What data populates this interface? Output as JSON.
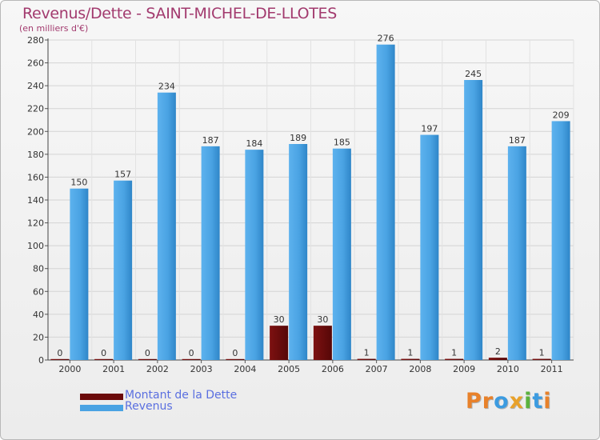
{
  "header": {
    "title": "Revenus/Dette - SAINT-MICHEL-DE-LLOTES",
    "subtitle": "(en milliers d'€)"
  },
  "legend": {
    "items": [
      {
        "label": "Montant de la Dette",
        "color": "#6b0a0a"
      },
      {
        "label": "Revenus",
        "color": "#4aa3e3"
      }
    ]
  },
  "logo": {
    "text": "Proxiti"
  },
  "colors": {
    "title": "#a23a6e",
    "dette": "#6b0a0a",
    "revenus": "#4aa3e3",
    "legend_text": "#5a6fe0"
  },
  "chart_data": {
    "type": "bar",
    "categories": [
      "2000",
      "2001",
      "2002",
      "2003",
      "2004",
      "2005",
      "2006",
      "2007",
      "2008",
      "2009",
      "2010",
      "2011"
    ],
    "series": [
      {
        "name": "Montant de la Dette",
        "values": [
          0,
          0,
          0,
          0,
          0,
          30,
          30,
          1,
          1,
          1,
          2,
          1
        ]
      },
      {
        "name": "Revenus",
        "values": [
          150,
          157,
          234,
          187,
          184,
          189,
          185,
          276,
          197,
          245,
          187,
          209
        ]
      }
    ],
    "yticks": [
      0,
      20,
      40,
      60,
      80,
      100,
      120,
      140,
      160,
      180,
      200,
      220,
      240,
      260,
      280
    ],
    "ylim": [
      0,
      280
    ],
    "grid": true,
    "legend_position": "bottom-left"
  }
}
